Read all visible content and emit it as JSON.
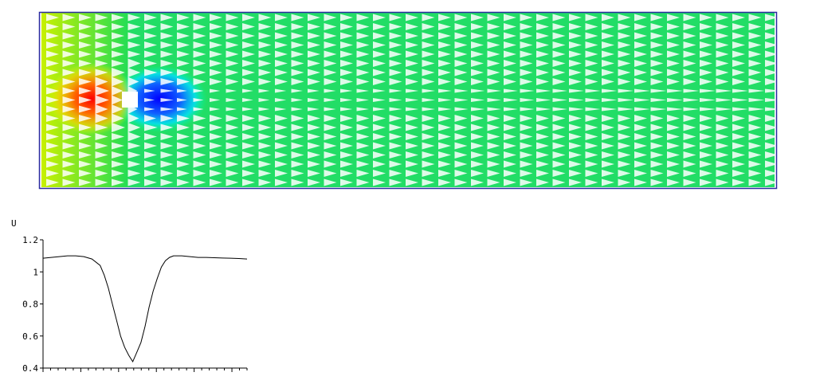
{
  "flow_view": {
    "field": "velocity",
    "colormap": [
      "#0000ff",
      "#00ffff",
      "#00ff66",
      "#ffff00",
      "#ff0000"
    ],
    "arrow_color": "#ffffff",
    "frame_color": "#2a2aa0",
    "obstacle_color": "#ffffff"
  },
  "chart_data": {
    "type": "line",
    "ylabel": "U",
    "xlabel": "",
    "ylim": [
      0.4,
      1.2
    ],
    "yticks": [
      "0.4",
      "0.6",
      "0.8",
      "1",
      "1.2"
    ],
    "x_minor_ticks": 27,
    "x": [
      0,
      0.04,
      0.08,
      0.12,
      0.16,
      0.2,
      0.24,
      0.28,
      0.3,
      0.32,
      0.34,
      0.36,
      0.38,
      0.4,
      0.42,
      0.44,
      0.46,
      0.48,
      0.5,
      0.52,
      0.54,
      0.56,
      0.58,
      0.6,
      0.62,
      0.64,
      0.66,
      0.68,
      0.72,
      0.76,
      0.8,
      0.84,
      0.88,
      0.92,
      0.96,
      1.0
    ],
    "series": [
      {
        "values": [
          1.085,
          1.09,
          1.095,
          1.1,
          1.1,
          1.095,
          1.08,
          1.04,
          0.98,
          0.9,
          0.8,
          0.7,
          0.6,
          0.53,
          0.48,
          0.44,
          0.5,
          0.56,
          0.66,
          0.78,
          0.88,
          0.96,
          1.03,
          1.07,
          1.09,
          1.1,
          1.1,
          1.1,
          1.095,
          1.09,
          1.09,
          1.088,
          1.086,
          1.085,
          1.083,
          1.08
        ],
        "color": "#000000"
      }
    ]
  }
}
